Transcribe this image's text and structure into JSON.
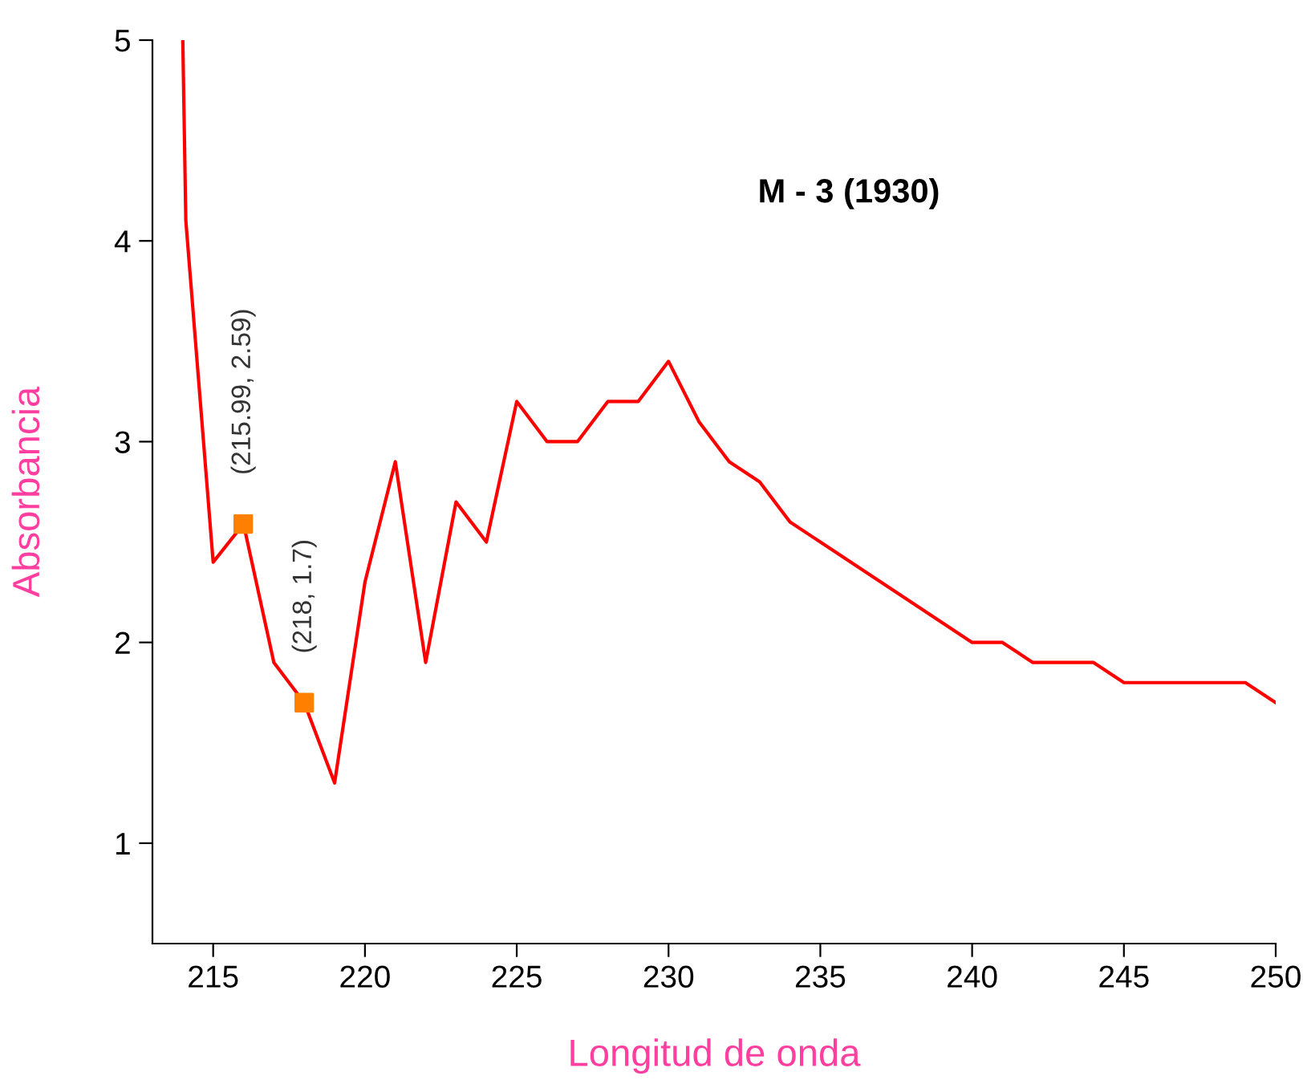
{
  "chart_data": {
    "type": "line",
    "title": "M - 3 (1930)",
    "xlabel": "Longitud de onda",
    "ylabel": "Absorbancia",
    "xlim": [
      213,
      250
    ],
    "xticks": [
      215,
      220,
      225,
      230,
      235,
      240,
      245,
      250
    ],
    "ylim": [
      0.5,
      5
    ],
    "yticks": [
      1,
      2,
      3,
      4,
      5
    ],
    "grid": false,
    "legend": false,
    "series": [
      {
        "color": "#ff0000",
        "marker": "none",
        "x": [
          214,
          214.1,
          215,
          216,
          217,
          218,
          219,
          220,
          221,
          222,
          223,
          224,
          225,
          226,
          227,
          228,
          229,
          230,
          231,
          232,
          233,
          234,
          240,
          241,
          242,
          244,
          245,
          249,
          250
        ],
        "values": [
          5,
          4.1,
          2.4,
          2.59,
          1.9,
          1.7,
          1.3,
          2.3,
          2.9,
          1.9,
          2.7,
          2.5,
          3.2,
          3.0,
          3.0,
          3.2,
          3.2,
          3.4,
          3.1,
          2.9,
          2.8,
          2.6,
          2.0,
          2.0,
          1.9,
          1.9,
          1.8,
          1.8,
          1.7
        ]
      },
      {
        "type": "scatter",
        "color": "#ff8000",
        "marker": "square",
        "x": [
          215.99,
          218
        ],
        "values": [
          2.59,
          1.7
        ]
      }
    ],
    "annotations": [
      {
        "text": "(215.99, 2.59)",
        "x": 215.99,
        "y": 2.59
      },
      {
        "text": "(218, 1.7)",
        "x": 218,
        "y": 1.7
      }
    ]
  }
}
